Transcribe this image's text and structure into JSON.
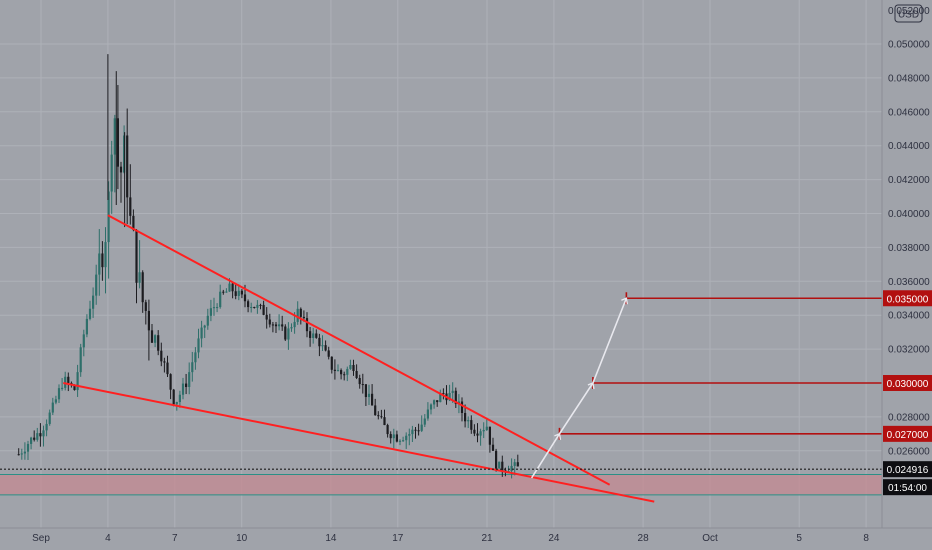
{
  "chart_data": {
    "type": "candlestick",
    "currency_label": "USD",
    "top_tick_partial": "0.052000",
    "y_ticks": [
      0.05,
      0.048,
      0.046,
      0.044,
      0.042,
      0.04,
      0.038,
      0.036,
      0.034,
      0.032,
      0.028,
      0.026
    ],
    "y_tick_labels": [
      "0.050000",
      "0.048000",
      "0.046000",
      "0.044000",
      "0.042000",
      "0.040000",
      "0.038000",
      "0.036000",
      "0.034000",
      "0.032000",
      "0.028000",
      "0.026000"
    ],
    "x_tick_labels": [
      "Sep",
      "4",
      "7",
      "10",
      "14",
      "17",
      "21",
      "24",
      "28",
      "Oct",
      "5",
      "8"
    ],
    "x_tick_dates": [
      "2021-09-01",
      "2021-09-04",
      "2021-09-07",
      "2021-09-10",
      "2021-09-14",
      "2021-09-17",
      "2021-09-21",
      "2021-09-24",
      "2021-09-28",
      "2021-10-01",
      "2021-10-05",
      "2021-10-08"
    ],
    "current_price": "0.024916",
    "countdown": "01:54:00",
    "target_levels": [
      {
        "value": 0.035,
        "label": "0.035000"
      },
      {
        "value": 0.03,
        "label": "0.030000"
      },
      {
        "value": 0.027,
        "label": "0.027000"
      }
    ],
    "price_path": [
      [
        "2021-08-31T00:00",
        0.0258
      ],
      [
        "2021-08-31T12:00",
        0.0266
      ],
      [
        "2021-09-01T00:00",
        0.0272
      ],
      [
        "2021-09-01T12:00",
        0.0284
      ],
      [
        "2021-09-02T00:00",
        0.0302
      ],
      [
        "2021-09-02T12:00",
        0.0296
      ],
      [
        "2021-09-03T00:00",
        0.0335
      ],
      [
        "2021-09-03T12:00",
        0.0362
      ],
      [
        "2021-09-04T00:00",
        0.0398
      ],
      [
        "2021-09-04T06:00",
        0.047
      ],
      [
        "2021-09-04T12:00",
        0.0418
      ],
      [
        "2021-09-04T18:00",
        0.0438
      ],
      [
        "2021-09-05T00:00",
        0.0395
      ],
      [
        "2021-09-05T12:00",
        0.035
      ],
      [
        "2021-09-06T00:00",
        0.0332
      ],
      [
        "2021-09-06T12:00",
        0.0312
      ],
      [
        "2021-09-07T00:00",
        0.0288
      ],
      [
        "2021-09-07T12:00",
        0.03
      ],
      [
        "2021-09-08T00:00",
        0.0322
      ],
      [
        "2021-09-08T12:00",
        0.034
      ],
      [
        "2021-09-09T00:00",
        0.035
      ],
      [
        "2021-09-09T12:00",
        0.0356
      ],
      [
        "2021-09-10T00:00",
        0.035
      ],
      [
        "2021-09-10T12:00",
        0.0346
      ],
      [
        "2021-09-11T00:00",
        0.0342
      ],
      [
        "2021-09-11T12:00",
        0.0334
      ],
      [
        "2021-09-12T00:00",
        0.0328
      ],
      [
        "2021-09-12T12:00",
        0.0342
      ],
      [
        "2021-09-13T00:00",
        0.033
      ],
      [
        "2021-09-13T12:00",
        0.0324
      ],
      [
        "2021-09-14T00:00",
        0.031
      ],
      [
        "2021-09-14T12:00",
        0.0305
      ],
      [
        "2021-09-15T00:00",
        0.0311
      ],
      [
        "2021-09-15T12:00",
        0.0296
      ],
      [
        "2021-09-16T00:00",
        0.0282
      ],
      [
        "2021-09-16T12:00",
        0.0272
      ],
      [
        "2021-09-17T00:00",
        0.0268
      ],
      [
        "2021-09-17T12:00",
        0.027
      ],
      [
        "2021-09-18T00:00",
        0.0274
      ],
      [
        "2021-09-18T12:00",
        0.0286
      ],
      [
        "2021-09-19T00:00",
        0.0294
      ],
      [
        "2021-09-19T12:00",
        0.0292
      ],
      [
        "2021-09-20T00:00",
        0.028
      ],
      [
        "2021-09-20T12:00",
        0.0272
      ],
      [
        "2021-09-21T00:00",
        0.0275
      ],
      [
        "2021-09-21T06:00",
        0.0258
      ],
      [
        "2021-09-21T12:00",
        0.025
      ],
      [
        "2021-09-22T00:00",
        0.0251
      ],
      [
        "2021-09-22T12:00",
        0.02492
      ]
    ],
    "channel_lines": [
      {
        "name": "upper",
        "from": [
          "2021-09-04T00:00",
          0.0399
        ],
        "to": [
          "2021-09-26T12:00",
          0.024
        ]
      },
      {
        "name": "lower",
        "from": [
          "2021-09-02T00:00",
          0.03
        ],
        "to": [
          "2021-09-28T12:00",
          0.023
        ]
      }
    ],
    "projection_path": [
      [
        "2021-09-23T00:00",
        0.0244
      ],
      [
        "2021-09-24T06:00",
        0.027
      ],
      [
        "2021-09-25T18:00",
        0.03
      ],
      [
        "2021-09-27T06:00",
        0.035
      ]
    ],
    "support_zone": [
      0.0234,
      0.0246
    ],
    "colors": {
      "background": "#a0a3aa",
      "grid": "#aeb1b8",
      "up": "#2e6f6a",
      "down": "#1c1c20",
      "trendline": "#ff2020",
      "target": "#b21010",
      "target_label_bg": "#b21010",
      "projection": "#e8e8ee",
      "zone": "#c48a92",
      "zone_border": "#2b8f86",
      "price_label_bg": "#0e0e12"
    }
  }
}
